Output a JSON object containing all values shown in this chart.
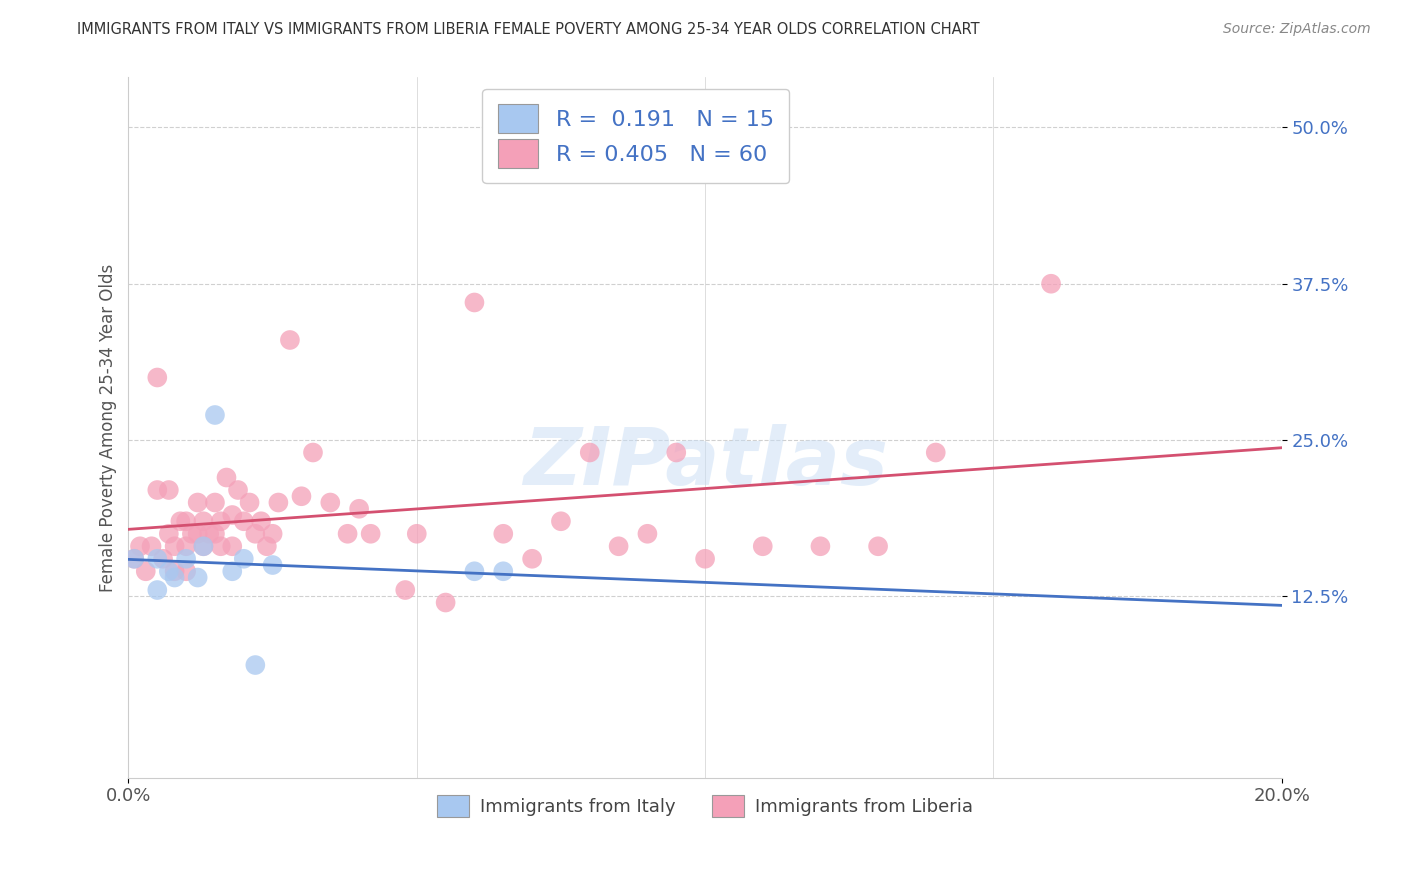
{
  "title": "IMMIGRANTS FROM ITALY VS IMMIGRANTS FROM LIBERIA FEMALE POVERTY AMONG 25-34 YEAR OLDS CORRELATION CHART",
  "source": "Source: ZipAtlas.com",
  "ylabel": "Female Poverty Among 25-34 Year Olds",
  "ytick_labels": [
    "12.5%",
    "25.0%",
    "37.5%",
    "50.0%"
  ],
  "ytick_values": [
    0.125,
    0.25,
    0.375,
    0.5
  ],
  "xlim": [
    0.0,
    0.2
  ],
  "ylim": [
    -0.02,
    0.54
  ],
  "watermark": "ZIPatlas",
  "legend_italy_R": "0.191",
  "legend_italy_N": "15",
  "legend_liberia_R": "0.405",
  "legend_liberia_N": "60",
  "italy_color": "#a8c8f0",
  "liberia_color": "#f4a0b8",
  "italy_line_color": "#4472c4",
  "liberia_line_color": "#d45070",
  "italy_scatter_x": [
    0.001,
    0.005,
    0.005,
    0.007,
    0.008,
    0.01,
    0.012,
    0.013,
    0.015,
    0.018,
    0.02,
    0.022,
    0.025,
    0.06,
    0.065
  ],
  "italy_scatter_y": [
    0.155,
    0.13,
    0.155,
    0.145,
    0.14,
    0.155,
    0.14,
    0.165,
    0.27,
    0.145,
    0.155,
    0.07,
    0.15,
    0.145,
    0.145
  ],
  "liberia_scatter_x": [
    0.001,
    0.002,
    0.003,
    0.004,
    0.005,
    0.005,
    0.006,
    0.007,
    0.007,
    0.008,
    0.008,
    0.009,
    0.01,
    0.01,
    0.01,
    0.011,
    0.012,
    0.012,
    0.013,
    0.013,
    0.014,
    0.015,
    0.015,
    0.016,
    0.016,
    0.017,
    0.018,
    0.018,
    0.019,
    0.02,
    0.021,
    0.022,
    0.023,
    0.024,
    0.025,
    0.026,
    0.028,
    0.03,
    0.032,
    0.035,
    0.038,
    0.04,
    0.042,
    0.048,
    0.05,
    0.055,
    0.06,
    0.065,
    0.07,
    0.075,
    0.08,
    0.085,
    0.09,
    0.095,
    0.1,
    0.11,
    0.12,
    0.13,
    0.14,
    0.16
  ],
  "liberia_scatter_y": [
    0.155,
    0.165,
    0.145,
    0.165,
    0.21,
    0.3,
    0.155,
    0.21,
    0.175,
    0.145,
    0.165,
    0.185,
    0.145,
    0.165,
    0.185,
    0.175,
    0.175,
    0.2,
    0.165,
    0.185,
    0.175,
    0.175,
    0.2,
    0.165,
    0.185,
    0.22,
    0.165,
    0.19,
    0.21,
    0.185,
    0.2,
    0.175,
    0.185,
    0.165,
    0.175,
    0.2,
    0.33,
    0.205,
    0.24,
    0.2,
    0.175,
    0.195,
    0.175,
    0.13,
    0.175,
    0.12,
    0.36,
    0.175,
    0.155,
    0.185,
    0.24,
    0.165,
    0.175,
    0.24,
    0.155,
    0.165,
    0.165,
    0.165,
    0.24,
    0.375
  ],
  "background_color": "#ffffff",
  "grid_color": "#d0d0d0"
}
